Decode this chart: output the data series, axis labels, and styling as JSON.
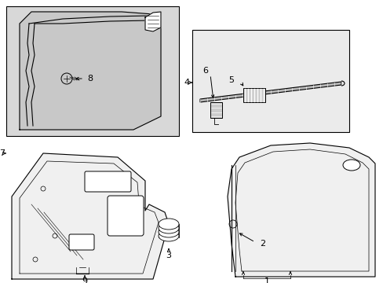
{
  "bg_color": "#ffffff",
  "line_color": "#000000",
  "fig_width": 4.89,
  "fig_height": 3.6,
  "dpi": 100,
  "gray_fill": "#d8d8d8",
  "white_fill": "#ffffff",
  "light_gray": "#ebebeb"
}
